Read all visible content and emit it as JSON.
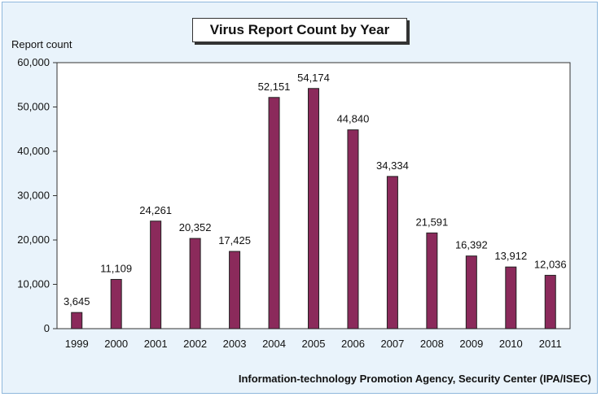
{
  "chart_data": {
    "type": "bar",
    "title": "Virus Report Count by Year",
    "ylabel": "Report count",
    "xlabel": "",
    "source": "Information-technology  Promotion  Agency, Security Center  (IPA/ISEC)",
    "categories": [
      "1999",
      "2000",
      "2001",
      "2002",
      "2003",
      "2004",
      "2005",
      "2006",
      "2007",
      "2008",
      "2009",
      "2010",
      "2011"
    ],
    "values": [
      3645,
      11109,
      24261,
      20352,
      17425,
      52151,
      54174,
      44840,
      34334,
      21591,
      16392,
      13912,
      12036
    ],
    "data_labels": [
      "3,645",
      "11,109",
      "24,261",
      "20,352",
      "17,425",
      "52,151",
      "54,174",
      "44,840",
      "34,334",
      "21,591",
      "16,392",
      "13,912",
      "12,036"
    ],
    "ylim": [
      0,
      60000
    ],
    "yticks": [
      0,
      10000,
      20000,
      30000,
      40000,
      50000,
      60000
    ],
    "ytick_labels": [
      "0",
      "10,000",
      "20,000",
      "30,000",
      "40,000",
      "50,000",
      "60,000"
    ],
    "grid": false,
    "bar_color": "#8b2a5b",
    "plot_background": "#ffffff",
    "page_background": "#e9f3fb"
  }
}
